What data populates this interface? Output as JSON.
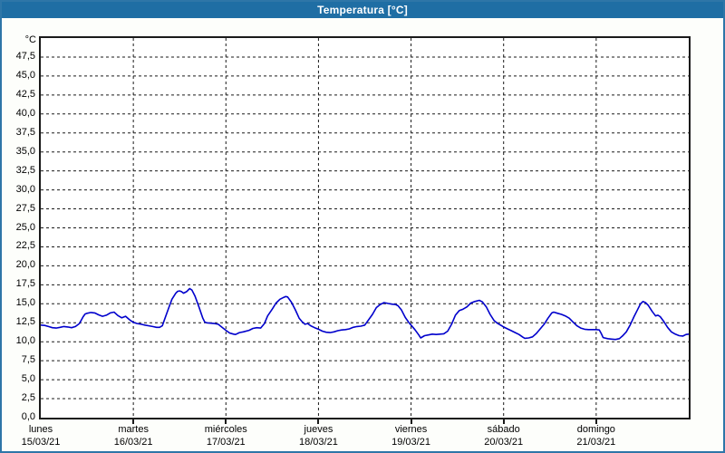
{
  "window": {
    "title": "Temperatura [°C]"
  },
  "colors": {
    "window_border": "#2E76A8",
    "titlebar_bg": "#1F6EA4",
    "titlebar_text": "#FFFFFF",
    "plot_border": "#1A1A1A",
    "gridline": "#1A1A1A",
    "series_line": "#0000CC",
    "label_text": "#000000",
    "plot_bg": "#FFFFFF",
    "window_bg": "#FDFEFB"
  },
  "chart_data": {
    "type": "line",
    "title": "Temperatura [°C]",
    "legend": "none",
    "grid": "dashed black, horizontal every 2.5 °C and vertical at each day boundary",
    "y_axis": {
      "unit_label": "°C",
      "min": 0,
      "max": 50,
      "tick_step": 2.5,
      "tick_labels": [
        "0,0",
        "2,5",
        "5,0",
        "7,5",
        "10,0",
        "12,5",
        "15,0",
        "17,5",
        "20,0",
        "22,5",
        "25,0",
        "27,5",
        "30,0",
        "32,5",
        "35,0",
        "37,5",
        "40,0",
        "42,5",
        "45,0",
        "47,5"
      ]
    },
    "x_axis": {
      "hours_span": 168,
      "day_width_hours": 24,
      "days": [
        {
          "name": "lunes",
          "date": "15/03/21"
        },
        {
          "name": "martes",
          "date": "16/03/21"
        },
        {
          "name": "miércoles",
          "date": "17/03/21"
        },
        {
          "name": "jueves",
          "date": "18/03/21"
        },
        {
          "name": "viernes",
          "date": "19/03/21"
        },
        {
          "name": "sábado",
          "date": "20/03/21"
        },
        {
          "name": "domingo",
          "date": "21/03/21"
        }
      ]
    },
    "series": [
      {
        "name": "Temperatura",
        "unit": "°C",
        "color": "#0000CC",
        "points_hours_temp": [
          [
            0,
            12.2
          ],
          [
            1,
            12.15
          ],
          [
            2,
            12.0
          ],
          [
            3,
            11.85
          ],
          [
            4,
            11.8
          ],
          [
            5,
            11.9
          ],
          [
            6,
            12.0
          ],
          [
            7,
            11.95
          ],
          [
            8,
            11.85
          ],
          [
            9,
            12.0
          ],
          [
            10,
            12.4
          ],
          [
            11,
            13.3
          ],
          [
            11.5,
            13.65
          ],
          [
            12,
            13.75
          ],
          [
            13,
            13.85
          ],
          [
            14,
            13.8
          ],
          [
            15,
            13.55
          ],
          [
            16,
            13.35
          ],
          [
            17,
            13.5
          ],
          [
            18,
            13.8
          ],
          [
            19,
            13.9
          ],
          [
            20,
            13.45
          ],
          [
            21,
            13.15
          ],
          [
            22,
            13.35
          ],
          [
            23,
            12.9
          ],
          [
            24,
            12.55
          ],
          [
            25,
            12.4
          ],
          [
            26,
            12.3
          ],
          [
            27,
            12.2
          ],
          [
            28,
            12.1
          ],
          [
            29,
            12.0
          ],
          [
            30,
            11.9
          ],
          [
            30.8,
            11.9
          ],
          [
            31.5,
            12.1
          ],
          [
            32,
            12.8
          ],
          [
            33,
            14.2
          ],
          [
            34,
            15.6
          ],
          [
            35,
            16.4
          ],
          [
            35.5,
            16.65
          ],
          [
            36,
            16.7
          ],
          [
            36.5,
            16.6
          ],
          [
            37,
            16.4
          ],
          [
            37.8,
            16.6
          ],
          [
            38.6,
            17.0
          ],
          [
            39.2,
            16.8
          ],
          [
            40,
            16.0
          ],
          [
            41,
            14.6
          ],
          [
            42,
            13.1
          ],
          [
            42.5,
            12.6
          ],
          [
            43,
            12.5
          ],
          [
            44,
            12.45
          ],
          [
            45,
            12.4
          ],
          [
            46,
            12.3
          ],
          [
            47,
            11.9
          ],
          [
            48,
            11.5
          ],
          [
            49,
            11.15
          ],
          [
            50,
            11.0
          ],
          [
            50.5,
            10.95
          ],
          [
            51.5,
            11.2
          ],
          [
            52.5,
            11.3
          ],
          [
            54,
            11.5
          ],
          [
            55,
            11.75
          ],
          [
            56,
            11.85
          ],
          [
            57,
            11.8
          ],
          [
            58,
            12.4
          ],
          [
            58.8,
            13.4
          ],
          [
            60,
            14.3
          ],
          [
            61,
            15.1
          ],
          [
            62,
            15.6
          ],
          [
            63,
            15.85
          ],
          [
            63.5,
            15.95
          ],
          [
            64,
            15.9
          ],
          [
            65,
            15.2
          ],
          [
            66,
            14.2
          ],
          [
            67,
            13.1
          ],
          [
            67.8,
            12.6
          ],
          [
            68.5,
            12.3
          ],
          [
            69.2,
            12.4
          ],
          [
            70,
            12.1
          ],
          [
            71,
            11.85
          ],
          [
            72,
            11.65
          ],
          [
            73,
            11.4
          ],
          [
            74,
            11.25
          ],
          [
            75,
            11.2
          ],
          [
            76,
            11.3
          ],
          [
            77,
            11.45
          ],
          [
            78,
            11.55
          ],
          [
            79,
            11.6
          ],
          [
            80,
            11.7
          ],
          [
            81,
            11.9
          ],
          [
            82,
            12.0
          ],
          [
            83,
            12.05
          ],
          [
            84,
            12.2
          ],
          [
            85,
            12.9
          ],
          [
            86,
            13.6
          ],
          [
            87,
            14.5
          ],
          [
            88,
            14.9
          ],
          [
            89,
            15.15
          ],
          [
            90,
            15.05
          ],
          [
            91,
            14.95
          ],
          [
            92,
            14.9
          ],
          [
            92.6,
            14.75
          ],
          [
            93.5,
            14.2
          ],
          [
            94.5,
            13.2
          ],
          [
            95.5,
            12.5
          ],
          [
            96,
            12.2
          ],
          [
            97,
            11.6
          ],
          [
            98,
            10.9
          ],
          [
            98.5,
            10.5
          ],
          [
            99.5,
            10.8
          ],
          [
            100.5,
            10.9
          ],
          [
            101.5,
            11.0
          ],
          [
            102.5,
            10.95
          ],
          [
            103.5,
            11.0
          ],
          [
            104.5,
            11.05
          ],
          [
            105.5,
            11.4
          ],
          [
            106.5,
            12.3
          ],
          [
            107.5,
            13.5
          ],
          [
            108.5,
            14.1
          ],
          [
            109.5,
            14.3
          ],
          [
            110.5,
            14.6
          ],
          [
            111.5,
            15.1
          ],
          [
            112.5,
            15.3
          ],
          [
            113.7,
            15.45
          ],
          [
            114.5,
            15.25
          ],
          [
            115.5,
            14.6
          ],
          [
            116.5,
            13.6
          ],
          [
            117.5,
            12.8
          ],
          [
            118.5,
            12.4
          ],
          [
            119.5,
            12.1
          ],
          [
            120,
            11.95
          ],
          [
            121,
            11.7
          ],
          [
            122,
            11.45
          ],
          [
            123,
            11.2
          ],
          [
            124,
            10.95
          ],
          [
            125,
            10.6
          ],
          [
            125.5,
            10.45
          ],
          [
            126.5,
            10.5
          ],
          [
            127.5,
            10.65
          ],
          [
            128.5,
            11.1
          ],
          [
            129.5,
            11.7
          ],
          [
            130.5,
            12.3
          ],
          [
            131.5,
            13.1
          ],
          [
            132.5,
            13.8
          ],
          [
            133,
            13.9
          ],
          [
            134,
            13.75
          ],
          [
            135,
            13.6
          ],
          [
            136,
            13.4
          ],
          [
            137,
            13.1
          ],
          [
            138,
            12.6
          ],
          [
            139,
            12.1
          ],
          [
            140,
            11.8
          ],
          [
            141,
            11.65
          ],
          [
            142,
            11.6
          ],
          [
            143,
            11.6
          ],
          [
            144,
            11.6
          ],
          [
            144.8,
            11.55
          ],
          [
            145.3,
            11.1
          ],
          [
            145.8,
            10.55
          ],
          [
            147,
            10.4
          ],
          [
            148,
            10.35
          ],
          [
            149,
            10.3
          ],
          [
            150,
            10.4
          ],
          [
            150.8,
            10.75
          ],
          [
            151.8,
            11.3
          ],
          [
            152.8,
            12.2
          ],
          [
            153.8,
            13.3
          ],
          [
            154.8,
            14.3
          ],
          [
            155.5,
            15.0
          ],
          [
            156.1,
            15.3
          ],
          [
            156.8,
            15.15
          ],
          [
            157.5,
            14.8
          ],
          [
            158.5,
            14.0
          ],
          [
            159.4,
            13.4
          ],
          [
            160,
            13.5
          ],
          [
            160.6,
            13.3
          ],
          [
            161.5,
            12.7
          ],
          [
            162.5,
            11.9
          ],
          [
            163.5,
            11.3
          ],
          [
            164.5,
            11.0
          ],
          [
            165.5,
            10.8
          ],
          [
            166.5,
            10.75
          ],
          [
            167.3,
            10.95
          ],
          [
            168,
            11.0
          ]
        ]
      }
    ]
  }
}
